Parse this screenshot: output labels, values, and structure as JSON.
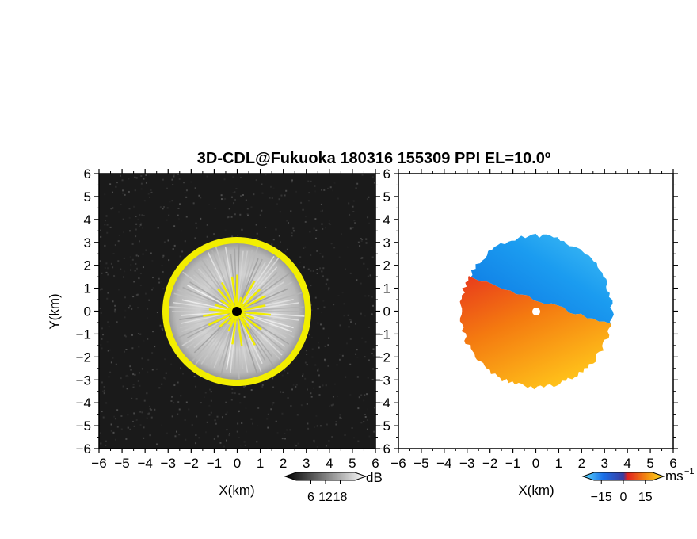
{
  "title": "3D-CDL@Fukuoka 180316 155309 PPI EL=10.0º",
  "colors": {
    "snr_background": "#1a1a1a",
    "snr_gray": "#c8c8c8",
    "snr_edge": "#f2ee00",
    "velocity_negative": "#1596e8",
    "velocity_positive": "#f47a10"
  },
  "chart_data": [
    {
      "type": "heatmap",
      "panel": "left",
      "xlabel": "X(km)",
      "ylabel": "Y(km)",
      "xlim": [
        -6,
        6
      ],
      "ylim": [
        -6,
        6
      ],
      "x_ticks": [
        "−6",
        "−5",
        "−4",
        "−3",
        "−2",
        "−1",
        "0",
        "1",
        "2",
        "3",
        "4",
        "5",
        "6"
      ],
      "y_ticks": [
        "6",
        "5",
        "4",
        "3",
        "2",
        "1",
        "0",
        "−1",
        "−2",
        "−3",
        "−4",
        "−5",
        "−6"
      ],
      "grid": false,
      "echo_radius_km": 3.2,
      "colorbar": {
        "unit": "dB",
        "ticks": [
          "6",
          "12",
          "18"
        ],
        "range": [
          0,
          24
        ],
        "placement": "bottom-right"
      }
    },
    {
      "type": "heatmap",
      "panel": "right",
      "xlabel": "X(km)",
      "xlim": [
        -6,
        6
      ],
      "ylim": [
        -6,
        6
      ],
      "x_ticks": [
        "−6",
        "−5",
        "−4",
        "−3",
        "−2",
        "−1",
        "0",
        "1",
        "2",
        "3",
        "4",
        "5",
        "6"
      ],
      "y_ticks": [
        "6",
        "5",
        "4",
        "3",
        "2",
        "1",
        "0",
        "−1",
        "−2",
        "−3",
        "−4",
        "−5",
        "−6"
      ],
      "grid": false,
      "echo_radius_km": 3.3,
      "velocity_split_line": {
        "west_y_km": 1.5,
        "east_y_km": -0.6
      },
      "colorbar": {
        "unit": "ms",
        "unit_exp": "−1",
        "ticks": [
          "−15",
          "0",
          "15"
        ],
        "range": [
          -20,
          20
        ],
        "placement": "bottom-right"
      }
    }
  ]
}
